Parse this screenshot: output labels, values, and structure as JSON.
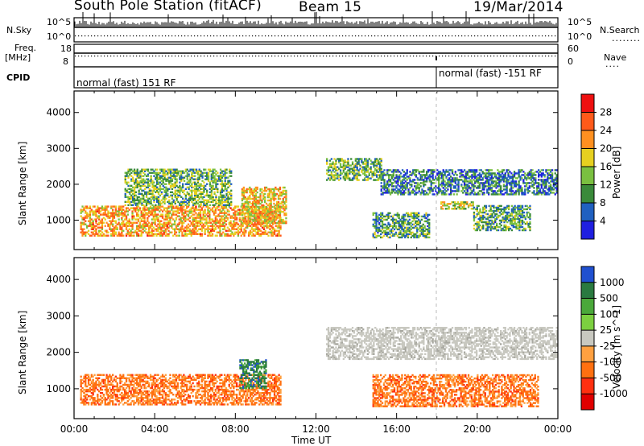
{
  "header": {
    "station": "South Pole Station (fitACF)",
    "beam": "Beam 15",
    "date": "19/Mar/2014"
  },
  "strips": {
    "nsky_label": "N.Sky",
    "nsearch_label": "N.Search",
    "nsky_ticks": [
      "10^5",
      "10^0"
    ],
    "nsearch_ticks": [
      "10^5",
      "10^0"
    ],
    "freq_label": "Freq.",
    "freq_unit": "[MHz]",
    "freq_ticks": [
      "18",
      "8"
    ],
    "nave_label": "Nave",
    "nave_ticks": [
      "60",
      "0"
    ],
    "cpid_label": "CPID",
    "cpid_segments": [
      {
        "text": "normal (fast) 151 RF",
        "start_hour": 0
      },
      {
        "text": "normal (fast) -151 RF",
        "start_hour": 18
      }
    ]
  },
  "chart_data": [
    {
      "type": "heatmap",
      "panel": "power",
      "x": {
        "start": "00:00",
        "end": "00:00",
        "range_hours": [
          0,
          24
        ],
        "tick_labels": [
          "00:00",
          "04:00",
          "08:00",
          "12:00",
          "16:00",
          "20:00",
          "00:00"
        ],
        "label": "Time UT"
      },
      "y": {
        "label": "Slant Range [km]",
        "range": [
          180,
          4600
        ],
        "ticks": [
          1000,
          2000,
          3000,
          4000
        ]
      },
      "colorbar": {
        "label": "Power [dB]",
        "ticks": [
          4,
          8,
          12,
          16,
          20,
          24,
          28
        ],
        "colors": [
          "#1f1fe0",
          "#2060c0",
          "#3a8a3a",
          "#7ac040",
          "#e6d020",
          "#ff9020",
          "#ff5a1a",
          "#ee1010"
        ],
        "range": [
          0,
          32
        ]
      },
      "features": [
        {
          "t": [
            0.3,
            10.2
          ],
          "range_km": [
            550,
            1400
          ],
          "dB": 22
        },
        {
          "t": [
            2.5,
            7.8
          ],
          "range_km": [
            1400,
            2400
          ],
          "dB": 12
        },
        {
          "t": [
            8.3,
            10.5
          ],
          "range_km": [
            900,
            1900
          ],
          "dB": 20
        },
        {
          "t": [
            12.5,
            15.2
          ],
          "range_km": [
            2100,
            2700
          ],
          "dB": 12
        },
        {
          "t": [
            15.2,
            24
          ],
          "range_km": [
            1700,
            2400
          ],
          "dB": 7
        },
        {
          "t": [
            14.8,
            17.6
          ],
          "range_km": [
            500,
            1200
          ],
          "dB": 10
        },
        {
          "t": [
            18.1,
            19.8
          ],
          "range_km": [
            1300,
            1500
          ],
          "dB": 16
        },
        {
          "t": [
            19.8,
            22.6
          ],
          "range_km": [
            700,
            1400
          ],
          "dB": 10
        }
      ]
    },
    {
      "type": "heatmap",
      "panel": "velocity",
      "x": {
        "range_hours": [
          0,
          24
        ],
        "tick_labels": [
          "00:00",
          "04:00",
          "08:00",
          "12:00",
          "16:00",
          "20:00",
          "00:00"
        ],
        "label": "Time UT"
      },
      "y": {
        "label": "Slant Range [km]",
        "range": [
          180,
          4600
        ],
        "ticks": [
          1000,
          2000,
          3000,
          4000
        ]
      },
      "colorbar": {
        "label": "Velocity [m s^-1]",
        "ticks": [
          "1000",
          "500",
          "100",
          "25",
          "-25",
          "-100",
          "-500",
          "-1000"
        ],
        "colors": [
          "#2050d0",
          "#2a7a40",
          "#4aa83a",
          "#7cd040",
          "#c8c8c0",
          "#ffa040",
          "#ff7010",
          "#ff3010",
          "#e00000"
        ]
      },
      "features": [
        {
          "t": [
            0.3,
            10.2
          ],
          "range_km": [
            550,
            1400
          ],
          "velocity": -300
        },
        {
          "t": [
            8.2,
            9.5
          ],
          "range_km": [
            1000,
            1800
          ],
          "velocity": 600
        },
        {
          "t": [
            12.5,
            24
          ],
          "range_km": [
            1800,
            2700
          ],
          "velocity": 0
        },
        {
          "t": [
            14.8,
            23.0
          ],
          "range_km": [
            500,
            1400
          ],
          "velocity": -250
        }
      ]
    }
  ],
  "colors": {
    "axis": "#000000",
    "background": "#ffffff"
  }
}
